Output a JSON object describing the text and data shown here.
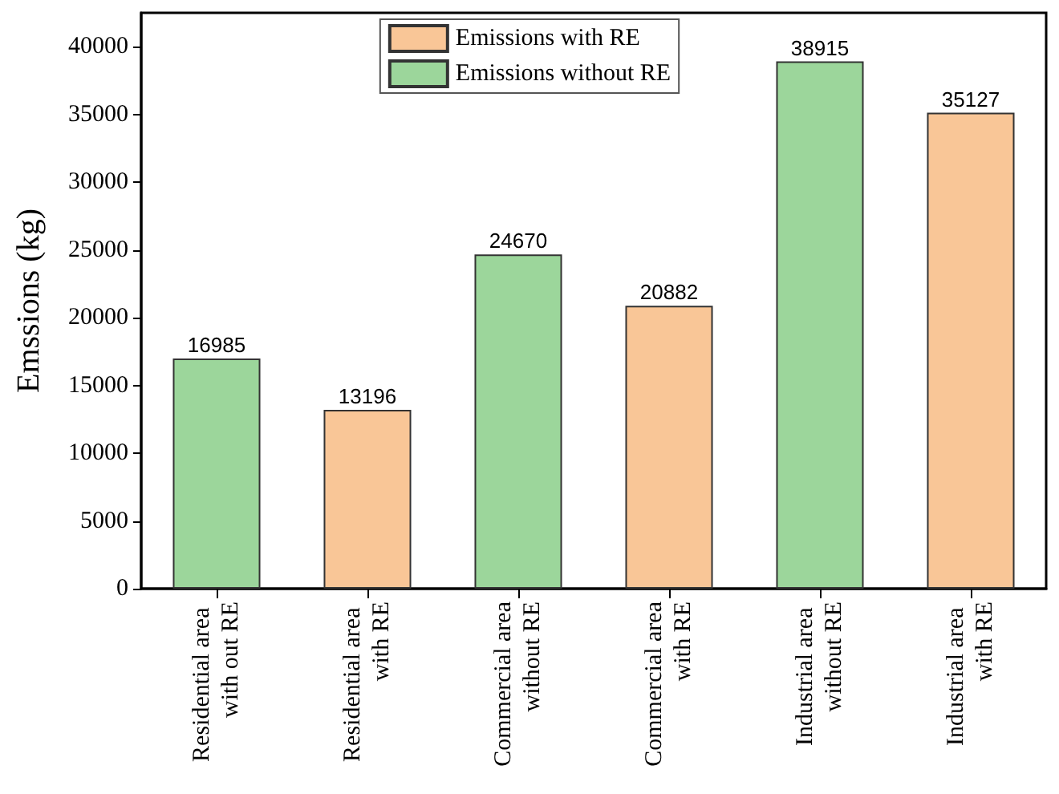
{
  "chart_data": {
    "type": "bar",
    "ylabel": "Emssions (kg)",
    "categories": [
      "Residential area with out RE",
      "Residential area with RE",
      "Commercial area without RE",
      "Commercial area with RE",
      "Industrial area without RE",
      "Industrial area with RE"
    ],
    "series": [
      {
        "name": "Emissions with RE",
        "color": "#f9c697",
        "values": [
          null,
          13196,
          null,
          20882,
          null,
          35127
        ]
      },
      {
        "name": "Emissions without RE",
        "color": "#9cd69b",
        "values": [
          16985,
          null,
          24670,
          null,
          38915,
          null
        ]
      }
    ],
    "ylim": [
      0,
      42500
    ],
    "yticks": [
      0,
      5000,
      10000,
      15000,
      20000,
      25000,
      30000,
      35000,
      40000
    ],
    "data_labels": true,
    "legend": "top",
    "grid": false
  }
}
